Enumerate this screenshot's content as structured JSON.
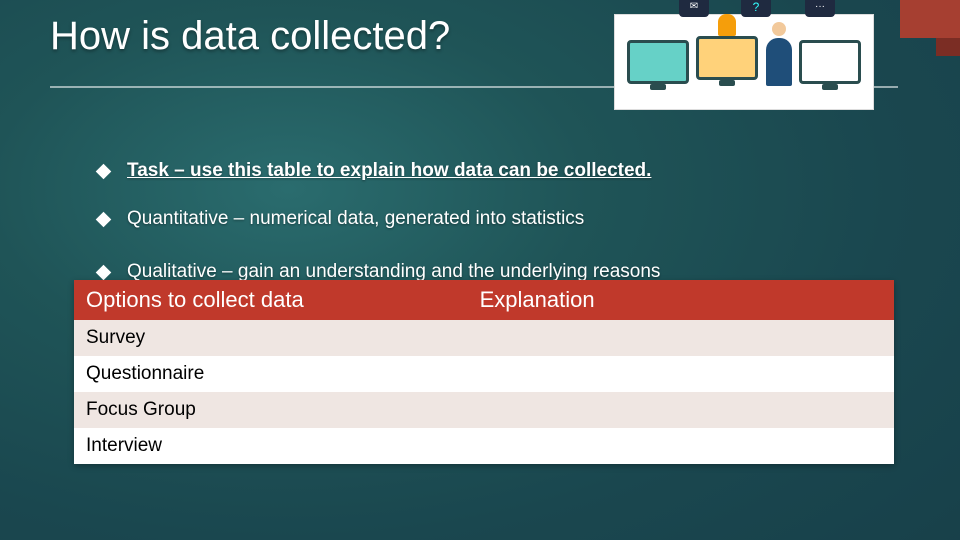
{
  "slide": {
    "title": "How is data collected?",
    "accent_color": "#a63f31",
    "background_gradient": [
      "#2a6c6e",
      "#1f5457",
      "#1a474f",
      "#153a45"
    ]
  },
  "bullets": [
    {
      "text": "Task – use this table to explain how data can be collected.",
      "style": "task"
    },
    {
      "text": "Quantitative – numerical data, generated into statistics",
      "style": "plain"
    },
    {
      "text": "Qualitative – gain an understanding and the underlying reasons",
      "style": "plain_cropped"
    }
  ],
  "table": {
    "header_bg": "#c0392b",
    "header_color": "#ffffff",
    "row_even_bg": "#efe6e2",
    "row_odd_bg": "#ffffff",
    "columns": [
      "Options to collect data",
      "Explanation"
    ],
    "rows": [
      [
        "Survey",
        ""
      ],
      [
        "Questionnaire",
        ""
      ],
      [
        "Focus Group",
        ""
      ],
      [
        "Interview",
        ""
      ]
    ]
  },
  "clipart_bubbles": [
    "✉",
    "?",
    "···"
  ]
}
